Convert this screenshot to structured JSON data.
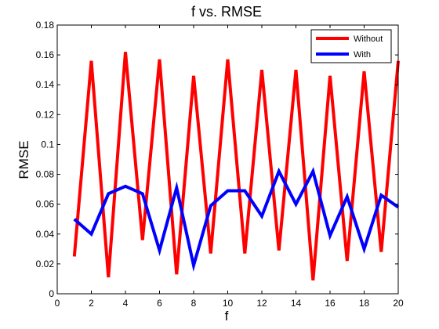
{
  "chart_data": {
    "type": "line",
    "title": "f vs. RMSE",
    "xlabel": "f",
    "ylabel": "RMSE",
    "xlim": [
      0,
      20
    ],
    "ylim": [
      0,
      0.18
    ],
    "xticks": [
      0,
      2,
      4,
      6,
      8,
      10,
      12,
      14,
      16,
      18,
      20
    ],
    "yticks": [
      0,
      0.02,
      0.04,
      0.06,
      0.08,
      0.1,
      0.12,
      0.14,
      0.16,
      0.18
    ],
    "xtick_labels": [
      "0",
      "2",
      "4",
      "6",
      "8",
      "10",
      "12",
      "14",
      "16",
      "18",
      "20"
    ],
    "ytick_labels": [
      "0",
      "0.02",
      "0.04",
      "0.06",
      "0.08",
      "0.1",
      "0.12",
      "0.14",
      "0.16",
      "0.18"
    ],
    "grid": false,
    "legend_position": "top-right",
    "x": [
      1,
      2,
      3,
      4,
      5,
      6,
      7,
      8,
      9,
      10,
      11,
      12,
      13,
      14,
      15,
      16,
      17,
      18,
      19,
      20
    ],
    "series": [
      {
        "name": "Without",
        "color": "#ff0000",
        "values": [
          0.025,
          0.156,
          0.011,
          0.162,
          0.036,
          0.157,
          0.013,
          0.146,
          0.027,
          0.157,
          0.027,
          0.15,
          0.029,
          0.15,
          0.009,
          0.146,
          0.022,
          0.149,
          0.028,
          0.156
        ]
      },
      {
        "name": "With",
        "color": "#0000ff",
        "values": [
          0.05,
          0.04,
          0.067,
          0.072,
          0.067,
          0.029,
          0.071,
          0.019,
          0.059,
          0.069,
          0.069,
          0.052,
          0.082,
          0.06,
          0.082,
          0.039,
          0.065,
          0.03,
          0.066,
          0.058
        ]
      }
    ]
  }
}
